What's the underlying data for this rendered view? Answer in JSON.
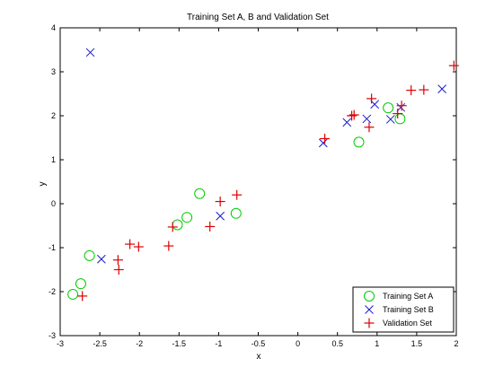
{
  "chart_data": {
    "type": "scatter",
    "title": "Training Set A, B and Validation Set",
    "xlabel": "x",
    "ylabel": "y",
    "xlim": [
      -3,
      2
    ],
    "ylim": [
      -3,
      4
    ],
    "xticks": [
      "-3",
      "-2.5",
      "-2",
      "-1.5",
      "-1",
      "-0.5",
      "0",
      "0.5",
      "1",
      "1.5",
      "2"
    ],
    "yticks": [
      "-3",
      "-2",
      "-1",
      "0",
      "1",
      "2",
      "3",
      "4"
    ],
    "grid": false,
    "legend_position": "bottom-right",
    "series": [
      {
        "name": "Training Set A",
        "marker": "circle",
        "color": "#00cc00",
        "points": [
          [
            -2.84,
            -2.06
          ],
          [
            -2.74,
            -1.82
          ],
          [
            -2.63,
            -1.18
          ],
          [
            -1.52,
            -0.48
          ],
          [
            -1.4,
            -0.31
          ],
          [
            -1.24,
            0.23
          ],
          [
            -0.78,
            -0.22
          ],
          [
            0.77,
            1.4
          ],
          [
            1.14,
            2.18
          ],
          [
            1.29,
            1.93
          ]
        ]
      },
      {
        "name": "Training Set B",
        "marker": "x",
        "color": "#1a1acc",
        "points": [
          [
            -2.62,
            3.44
          ],
          [
            -2.48,
            -1.26
          ],
          [
            -0.98,
            -0.28
          ],
          [
            0.32,
            1.38
          ],
          [
            0.62,
            1.85
          ],
          [
            0.87,
            1.93
          ],
          [
            0.97,
            2.26
          ],
          [
            1.17,
            1.92
          ],
          [
            1.3,
            2.19
          ],
          [
            1.82,
            2.61
          ]
        ]
      },
      {
        "name": "Validation Set",
        "marker": "plus",
        "color": "#dd0000",
        "points": [
          [
            -2.72,
            -2.1
          ],
          [
            -2.27,
            -1.28
          ],
          [
            -2.26,
            -1.5
          ],
          [
            -2.12,
            -0.92
          ],
          [
            -2.01,
            -0.98
          ],
          [
            -1.63,
            -0.96
          ],
          [
            -1.58,
            -0.53
          ],
          [
            -1.11,
            -0.52
          ],
          [
            -0.98,
            0.05
          ],
          [
            -0.77,
            0.2
          ],
          [
            0.34,
            1.48
          ],
          [
            0.68,
            2.0
          ],
          [
            0.71,
            2.02
          ],
          [
            0.9,
            1.74
          ],
          [
            0.93,
            2.39
          ],
          [
            1.26,
            2.05
          ],
          [
            1.31,
            2.23
          ],
          [
            1.43,
            2.58
          ],
          [
            1.59,
            2.59
          ],
          [
            1.97,
            3.14
          ]
        ]
      }
    ]
  }
}
